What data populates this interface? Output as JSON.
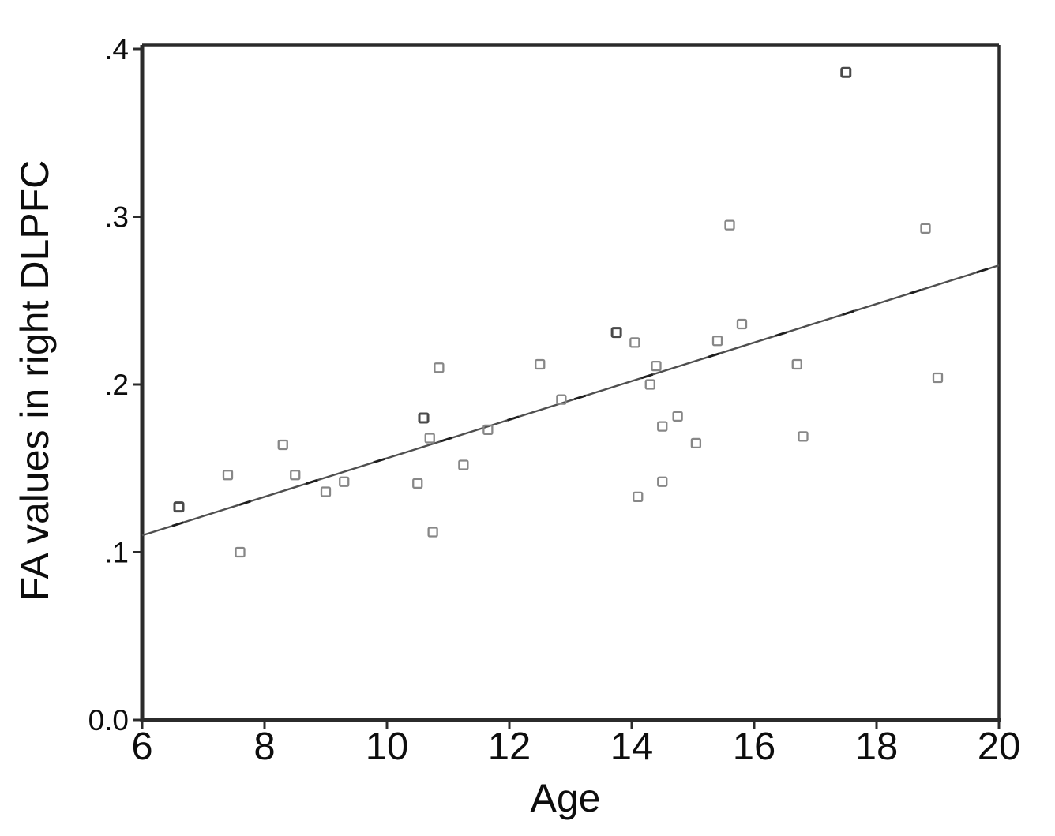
{
  "figure": {
    "xlabel": "Age",
    "ylabel": "FA values in right DLPFC"
  },
  "chart_data": {
    "type": "scatter",
    "title": "",
    "xlabel": "Age",
    "ylabel": "FA values in right DLPFC",
    "xlim": [
      6,
      20
    ],
    "ylim": [
      0.0,
      0.4
    ],
    "grid": "off",
    "legend": "none",
    "frame": "closed-box",
    "x_ticks": [
      {
        "value": 6,
        "label": "6"
      },
      {
        "value": 8,
        "label": "8"
      },
      {
        "value": 10,
        "label": "10"
      },
      {
        "value": 12,
        "label": "12"
      },
      {
        "value": 14,
        "label": "14"
      },
      {
        "value": 16,
        "label": "16"
      },
      {
        "value": 18,
        "label": "18"
      },
      {
        "value": 20,
        "label": "20"
      }
    ],
    "y_ticks": [
      {
        "value": 0.0,
        "label": "0.0"
      },
      {
        "value": 0.1,
        "label": ".1"
      },
      {
        "value": 0.2,
        "label": ".2"
      },
      {
        "value": 0.3,
        "label": ".3"
      },
      {
        "value": 0.4,
        "label": ".4"
      }
    ],
    "points": [
      {
        "age": 6.6,
        "fa": 0.127,
        "dense": true
      },
      {
        "age": 7.4,
        "fa": 0.146
      },
      {
        "age": 7.6,
        "fa": 0.1
      },
      {
        "age": 8.3,
        "fa": 0.164
      },
      {
        "age": 8.5,
        "fa": 0.146
      },
      {
        "age": 9.0,
        "fa": 0.136
      },
      {
        "age": 9.3,
        "fa": 0.142
      },
      {
        "age": 10.5,
        "fa": 0.141
      },
      {
        "age": 10.6,
        "fa": 0.18,
        "dense": true
      },
      {
        "age": 10.7,
        "fa": 0.168
      },
      {
        "age": 10.75,
        "fa": 0.112
      },
      {
        "age": 10.85,
        "fa": 0.21
      },
      {
        "age": 11.25,
        "fa": 0.152
      },
      {
        "age": 11.65,
        "fa": 0.173
      },
      {
        "age": 12.5,
        "fa": 0.212
      },
      {
        "age": 12.85,
        "fa": 0.191
      },
      {
        "age": 13.75,
        "fa": 0.231,
        "dense": true
      },
      {
        "age": 14.05,
        "fa": 0.225
      },
      {
        "age": 14.1,
        "fa": 0.133
      },
      {
        "age": 14.3,
        "fa": 0.2
      },
      {
        "age": 14.4,
        "fa": 0.211
      },
      {
        "age": 14.5,
        "fa": 0.142
      },
      {
        "age": 14.5,
        "fa": 0.175
      },
      {
        "age": 14.75,
        "fa": 0.181
      },
      {
        "age": 15.05,
        "fa": 0.165
      },
      {
        "age": 15.4,
        "fa": 0.226
      },
      {
        "age": 15.6,
        "fa": 0.295
      },
      {
        "age": 15.8,
        "fa": 0.236
      },
      {
        "age": 16.7,
        "fa": 0.212
      },
      {
        "age": 16.8,
        "fa": 0.169
      },
      {
        "age": 17.5,
        "fa": 0.386,
        "dense": true
      },
      {
        "age": 18.8,
        "fa": 0.293
      },
      {
        "age": 19.0,
        "fa": 0.204
      }
    ],
    "trend_line": {
      "type": "linear-fit",
      "x": [
        6,
        20
      ],
      "y": [
        0.11,
        0.271
      ]
    },
    "colors": {
      "marker_stroke": "#878787",
      "marker_dense_stroke": "#4a4a4a",
      "trend_line": "#4f4f4f",
      "trend_dash_overlay": "#1e1e1e",
      "axis": "#2b2b2b",
      "text": "#0d0d0d",
      "background": "#ffffff"
    }
  }
}
